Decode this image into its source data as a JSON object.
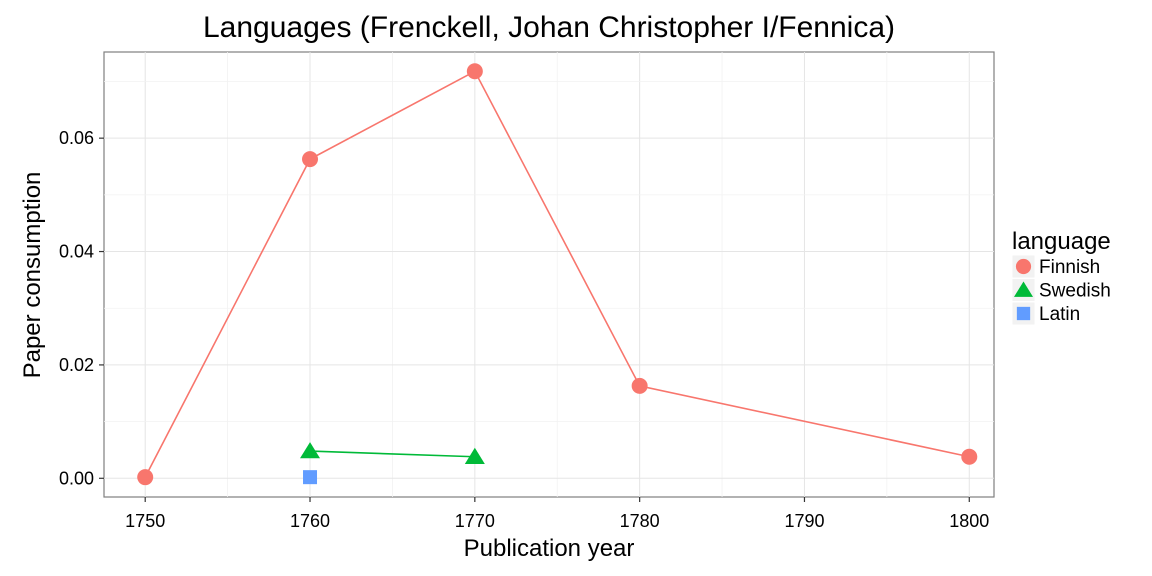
{
  "chart_data": {
    "type": "line",
    "title": "Languages (Frenckell, Johan Christopher I/Fennica)",
    "xlabel": "Publication year",
    "ylabel": "Paper consumption",
    "xlim": [
      1747.5,
      1801.5
    ],
    "ylim": [
      -0.0033,
      0.0752
    ],
    "x_ticks": [
      1750,
      1760,
      1770,
      1780,
      1790,
      1800
    ],
    "x_tick_labels": [
      "1750",
      "1760",
      "1770",
      "1780",
      "1790",
      "1800"
    ],
    "y_ticks": [
      0.0,
      0.02,
      0.04,
      0.06
    ],
    "y_tick_labels": [
      "0.00",
      "0.02",
      "0.04",
      "0.06"
    ],
    "grid": true,
    "legend": {
      "title": "language",
      "position": "right"
    },
    "series": [
      {
        "name": "Finnish",
        "shape": "circle",
        "color": "#F8766D",
        "x": [
          1750,
          1760,
          1770,
          1780,
          1800
        ],
        "y": [
          0.0002,
          0.0563,
          0.0718,
          0.0163,
          0.0038
        ]
      },
      {
        "name": "Swedish",
        "shape": "triangle",
        "color": "#00BA38",
        "x": [
          1760,
          1770
        ],
        "y": [
          0.0048,
          0.0038
        ]
      },
      {
        "name": "Latin",
        "shape": "square",
        "color": "#619CFF",
        "x": [
          1760
        ],
        "y": [
          0.0002
        ]
      }
    ]
  }
}
